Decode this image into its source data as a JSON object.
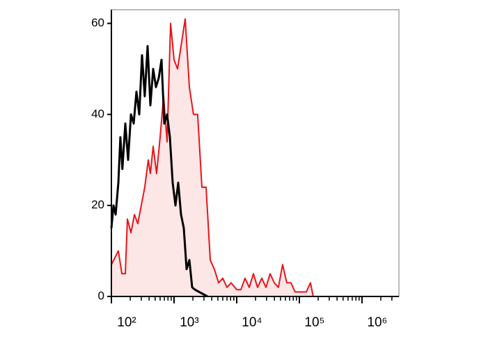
{
  "chart_data": {
    "type": "histogram-overlay",
    "log_x": true,
    "xlim": [
      100,
      3890000
    ],
    "ylim": [
      0,
      63
    ],
    "xticks": [
      {
        "value": 100,
        "label": "10²"
      },
      {
        "value": 1000,
        "label": "10³"
      },
      {
        "value": 10000,
        "label": "10⁴"
      },
      {
        "value": 100000,
        "label": "10⁵"
      },
      {
        "value": 1000000,
        "label": "10⁶"
      }
    ],
    "yticks": [
      0,
      20,
      40,
      60
    ],
    "series": [
      {
        "color": "#e8141b",
        "fill": "#fde6e6",
        "x": [
          100,
          129,
          147,
          167,
          180,
          205,
          233,
          264,
          300,
          341,
          388,
          419,
          464,
          527,
          599,
          681,
          774,
          880,
          1000,
          1136,
          1292,
          1506,
          1755,
          2045,
          2385,
          2783,
          3243,
          3783,
          4406,
          5140,
          5995,
          6985,
          8147,
          10000,
          11660,
          13590,
          15850,
          18490,
          21540,
          25120,
          29290,
          34150,
          39810,
          46420,
          54120,
          63100,
          73560,
          85770,
          105200,
          129200,
          150600,
          166800
        ],
        "values": [
          7,
          10,
          5,
          5,
          17,
          14,
          18,
          16,
          20,
          24,
          30,
          27,
          33,
          27,
          35,
          44,
          34,
          60,
          52,
          50,
          55,
          61,
          46,
          40,
          40,
          24,
          24,
          8,
          6,
          3,
          4,
          2,
          3,
          1.5,
          1.5,
          4,
          2,
          5,
          2,
          4,
          2,
          5,
          3,
          2,
          7,
          3,
          3,
          1,
          1,
          1,
          3,
          0
        ]
      },
      {
        "color": "#000000",
        "x": [
          100,
          108,
          117,
          129,
          139,
          150,
          167,
          185,
          205,
          227,
          251,
          278,
          308,
          341,
          378,
          419,
          464,
          514,
          570,
          631,
          699,
          774,
          858,
          950,
          1052,
          1166,
          1292,
          1431,
          1585,
          1755,
          1944,
          2154,
          2512,
          2929,
          3415
        ],
        "values": [
          15,
          20,
          18,
          25,
          35,
          28,
          38,
          30,
          40,
          38,
          45,
          40,
          53,
          44,
          55,
          42,
          50,
          46,
          48,
          52,
          38,
          40,
          35,
          25,
          20,
          25,
          18,
          15,
          6,
          8,
          2,
          1.5,
          1,
          0.5,
          0
        ]
      }
    ]
  }
}
